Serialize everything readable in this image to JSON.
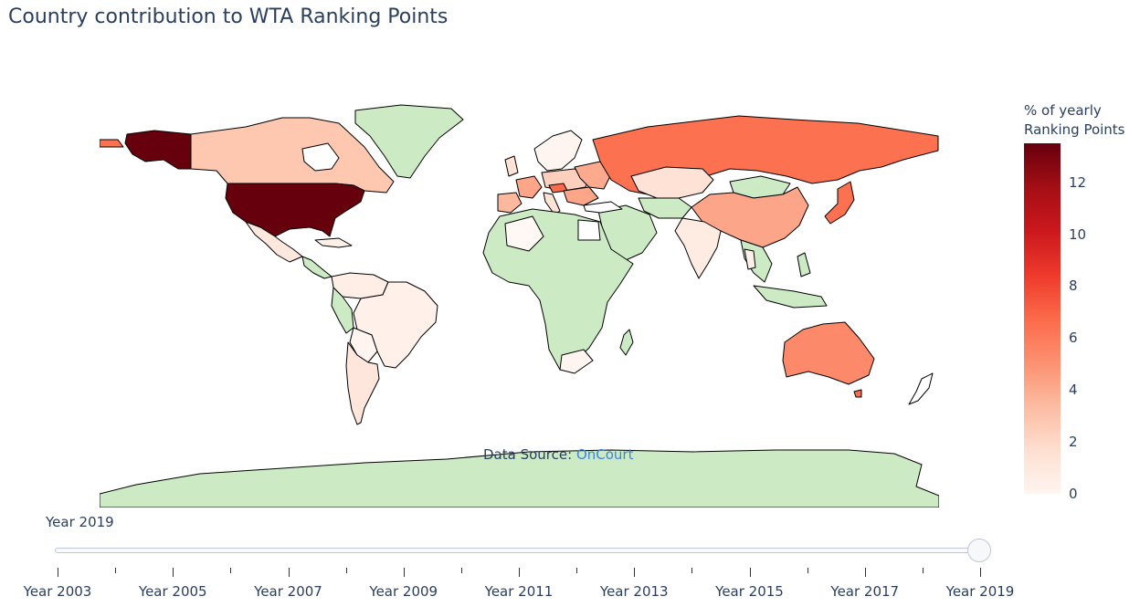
{
  "title": "Country contribution to WTA Ranking Points",
  "source": {
    "prefix": "Data Source: ",
    "link_text": "OnCourt"
  },
  "colorbar": {
    "title_line1": "% of yearly",
    "title_line2": "Ranking Points",
    "ticks": [
      "0",
      "2",
      "4",
      "6",
      "8",
      "10",
      "12"
    ],
    "colorscale": "Reds",
    "no_data_color": "#ccebc5"
  },
  "slider": {
    "current_label": "Year 2019",
    "labels": [
      "Year 2003",
      "Year 2005",
      "Year 2007",
      "Year 2009",
      "Year 2011",
      "Year 2013",
      "Year 2015",
      "Year 2017",
      "Year 2019"
    ]
  },
  "map_data": {
    "selected_year": "Year 2019",
    "country_values_pct_approx": {
      "United States": 13.5,
      "Russia": 6.5,
      "Japan": 6.5,
      "Australia": 5.5,
      "China": 4.0,
      "Canada": 2.0,
      "Czech Republic": 7.0,
      "Kazakhstan": 1.0,
      "Ukraine": 3.0,
      "Romania": 3.0,
      "France": 3.0,
      "Spain": 2.0,
      "United Kingdom": 1.0,
      "Germany": 1.5,
      "Poland": 1.0,
      "Belarus": 1.5,
      "Mexico": 0.5,
      "Brazil": 0.5,
      "Argentina": 0.5,
      "Colombia": 0.5,
      "India": 0.5,
      "Mongolia": null,
      "Greenland": null,
      "Antarctica": null,
      "Africa (most countries)": null
    }
  }
}
